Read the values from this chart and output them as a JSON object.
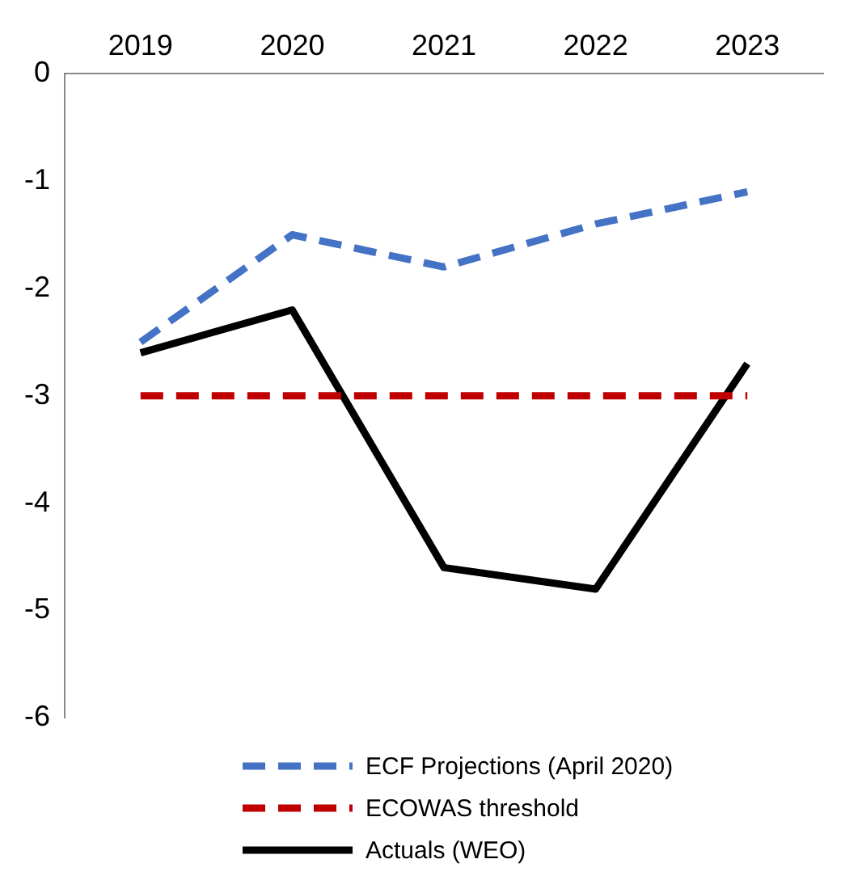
{
  "chart_data": {
    "type": "line",
    "categories": [
      "2019",
      "2020",
      "2021",
      "2022",
      "2023"
    ],
    "series": [
      {
        "name": "ECF Projections (April 2020)",
        "color": "#4472c4",
        "line_style": "dashed",
        "values": [
          -2.5,
          -1.5,
          -1.8,
          -1.4,
          -1.1
        ]
      },
      {
        "name": "ECOWAS threshold",
        "color": "#c00000",
        "line_style": "dashed",
        "values": [
          -3,
          -3,
          -3,
          -3,
          -3
        ]
      },
      {
        "name": "Actuals (WEO)",
        "color": "#000000",
        "line_style": "solid",
        "values": [
          -2.6,
          -2.2,
          -4.6,
          -4.8,
          -2.7
        ]
      }
    ],
    "ylim": [
      -6,
      0
    ],
    "yticks": [
      -6,
      -5,
      -4,
      -3,
      -2,
      -1,
      0
    ],
    "grid": false,
    "legend": "bottom",
    "marker": "none"
  }
}
